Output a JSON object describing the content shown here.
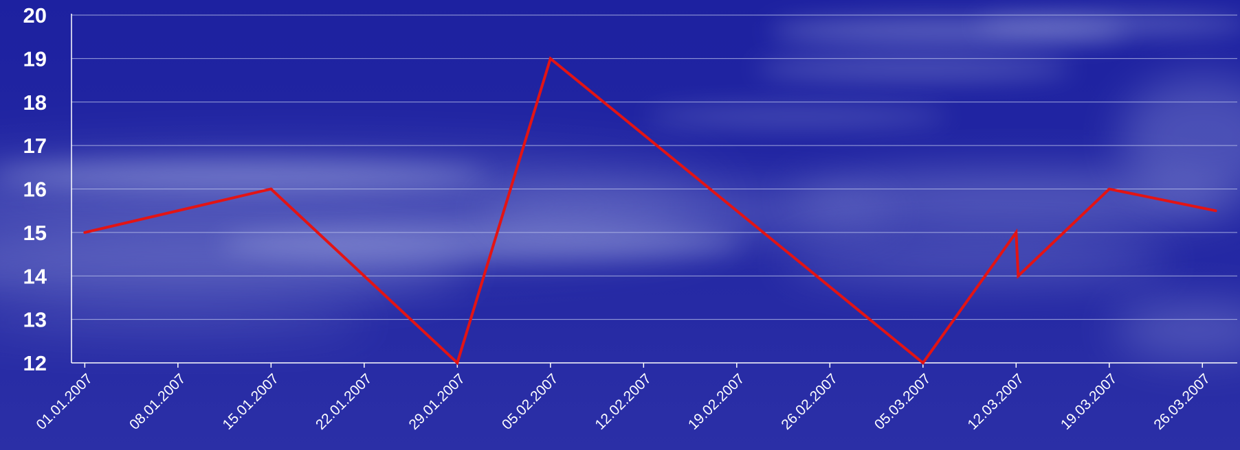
{
  "colors": {
    "background_top": "#1d21a0",
    "background_bottom": "#2b2fa6",
    "cloud": "#c8d0f2",
    "gridline": "#b6bde8",
    "axis": "#ffffff",
    "line": "#e31414",
    "text": "#ffffff"
  },
  "chart_data": {
    "type": "line",
    "title": "",
    "xlabel": "",
    "ylabel": "",
    "grid": true,
    "legend": "none",
    "ylim": [
      12,
      20
    ],
    "yticks": [
      "12",
      "13",
      "14",
      "15",
      "16",
      "17",
      "18",
      "19",
      "20"
    ],
    "xlim": [
      "31.12.2006",
      "28.03.2007"
    ],
    "xticks": [
      "01.01.2007",
      "08.01.2007",
      "15.01.2007",
      "22.01.2007",
      "29.01.2007",
      "05.02.2007",
      "12.02.2007",
      "19.02.2007",
      "26.02.2007",
      "05.03.2007",
      "12.03.2007",
      "19.03.2007",
      "26.03.2007"
    ],
    "series": [
      {
        "color": "#e31414",
        "points": [
          {
            "x": "01.01.2007",
            "y": 15
          },
          {
            "x": "15.01.2007",
            "y": 16
          },
          {
            "x": "29.01.2007",
            "y": 12
          },
          {
            "x": "05.02.2007",
            "y": 19
          },
          {
            "x": "05.03.2007",
            "y": 12
          },
          {
            "x": "12.03.2007",
            "y": 15
          },
          {
            "x": "12.03.2007",
            "y": 14
          },
          {
            "x": "19.03.2007",
            "y": 16
          },
          {
            "x": "27.03.2007",
            "y": 15.5
          }
        ]
      }
    ]
  }
}
